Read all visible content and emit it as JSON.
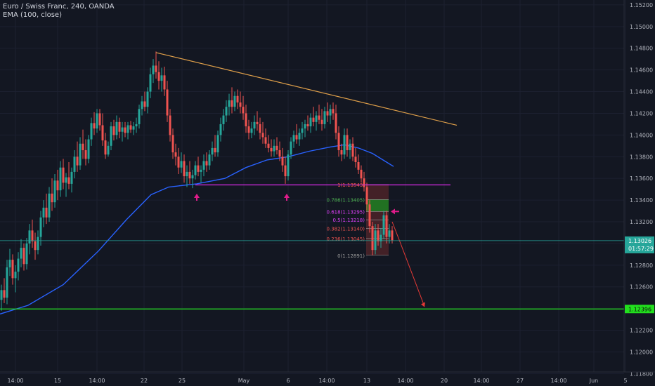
{
  "header": {
    "title": "Euro / Swiss Franc, 240, OANDA",
    "indicator": "EMA (100, close)"
  },
  "colors": {
    "background": "#131722",
    "grid": "#1c2030",
    "up": "#26a69a",
    "down": "#ef5350",
    "ema": "#2962ff",
    "trendline": "#e0a04a",
    "support": "#c729d6",
    "target": "#22e01e",
    "price_line": "#26a69a",
    "fib_box": "#6b2a2c",
    "fib_green": "#1e7a22",
    "arrow": "#e01b8a",
    "projection": "#e53935"
  },
  "chart_data": {
    "type": "candlestick",
    "symbol": "Euro / Swiss Franc",
    "timeframe": "240",
    "source": "OANDA",
    "y_axis": {
      "range": [
        1.1178,
        1.1528
      ],
      "ticks": [
        "1.15200",
        "1.15000",
        "1.14800",
        "1.14600",
        "1.14400",
        "1.14200",
        "1.14000",
        "1.13800",
        "1.13600",
        "1.13400",
        "1.13200",
        "1.13000",
        "1.12800",
        "1.12600",
        "1.12400",
        "1.12200",
        "1.12000",
        "1.11800"
      ]
    },
    "x_axis": {
      "ticks": [
        "14:00",
        "15",
        "14:00",
        "22",
        "25",
        "May",
        "6",
        "14:00",
        "13",
        "14:00",
        "20",
        "14:00",
        "27",
        "14:00",
        "Jun",
        "5"
      ]
    },
    "last_price": {
      "label": "1.13026",
      "value": 1.13026,
      "countdown": "01:57:29"
    },
    "target_level": {
      "label": "1.12396",
      "value": 1.12396
    },
    "ema_period": 100,
    "support_level": 1.1354,
    "trendline": [
      {
        "x": 222,
        "price": 1.1476
      },
      {
        "x": 650,
        "price": 1.1409
      }
    ],
    "fibonacci": [
      {
        "label": "1(1.13543)",
        "level": 1,
        "price": 1.13543
      },
      {
        "label": "0.786(1.13405)",
        "level": 0.786,
        "price": 1.13405
      },
      {
        "label": "0.618(1.13295)",
        "level": 0.618,
        "price": 1.13295
      },
      {
        "label": "0.5(1.13218)",
        "level": 0.5,
        "price": 1.13218
      },
      {
        "label": "0.382(1.13140)",
        "level": 0.382,
        "price": 1.1314
      },
      {
        "label": "0.236(1.13045)",
        "level": 0.236,
        "price": 1.13045
      },
      {
        "label": "0(1.12891)",
        "level": 0,
        "price": 1.12891
      }
    ],
    "ema": [
      [
        0,
        1.1235
      ],
      [
        40,
        1.1243
      ],
      [
        90,
        1.1262
      ],
      [
        140,
        1.1293
      ],
      [
        180,
        1.1322
      ],
      [
        215,
        1.1345
      ],
      [
        240,
        1.1352
      ],
      [
        280,
        1.1355
      ],
      [
        320,
        1.136
      ],
      [
        350,
        1.137
      ],
      [
        380,
        1.1377
      ],
      [
        410,
        1.138
      ],
      [
        440,
        1.1385
      ],
      [
        470,
        1.1389
      ],
      [
        490,
        1.1391
      ],
      [
        510,
        1.1388
      ],
      [
        530,
        1.1383
      ],
      [
        550,
        1.1375
      ],
      [
        560,
        1.1371
      ]
    ],
    "candles": [
      [
        2,
        1.1248,
        1.1262,
        1.1238,
        1.1257
      ],
      [
        6,
        1.1257,
        1.1268,
        1.1245,
        1.125
      ],
      [
        10,
        1.125,
        1.1285,
        1.1244,
        1.1278
      ],
      [
        14,
        1.1278,
        1.1295,
        1.127,
        1.1285
      ],
      [
        18,
        1.1285,
        1.129,
        1.1262,
        1.1268
      ],
      [
        22,
        1.1268,
        1.128,
        1.1255,
        1.1274
      ],
      [
        26,
        1.1274,
        1.1292,
        1.1266,
        1.1286
      ],
      [
        30,
        1.1286,
        1.1304,
        1.1278,
        1.1296
      ],
      [
        34,
        1.1296,
        1.13,
        1.1275,
        1.1281
      ],
      [
        38,
        1.1281,
        1.1305,
        1.1276,
        1.13
      ],
      [
        42,
        1.13,
        1.1318,
        1.129,
        1.1312
      ],
      [
        46,
        1.1312,
        1.1322,
        1.1296,
        1.1302
      ],
      [
        50,
        1.1302,
        1.131,
        1.1285,
        1.1294
      ],
      [
        54,
        1.1294,
        1.1312,
        1.129,
        1.1306
      ],
      [
        58,
        1.1306,
        1.133,
        1.1298,
        1.1324
      ],
      [
        62,
        1.1324,
        1.134,
        1.1315,
        1.1333
      ],
      [
        66,
        1.1333,
        1.1346,
        1.1318,
        1.1324
      ],
      [
        70,
        1.1324,
        1.1352,
        1.132,
        1.1346
      ],
      [
        74,
        1.1346,
        1.136,
        1.133,
        1.1338
      ],
      [
        78,
        1.1338,
        1.1364,
        1.1333,
        1.1358
      ],
      [
        82,
        1.1358,
        1.1368,
        1.134,
        1.1349
      ],
      [
        86,
        1.1349,
        1.1376,
        1.1343,
        1.137
      ],
      [
        90,
        1.137,
        1.1378,
        1.135,
        1.1356
      ],
      [
        94,
        1.1356,
        1.1365,
        1.1343,
        1.1361
      ],
      [
        98,
        1.1361,
        1.1375,
        1.135,
        1.1355
      ],
      [
        102,
        1.1355,
        1.137,
        1.1347,
        1.1366
      ],
      [
        106,
        1.1366,
        1.1386,
        1.136,
        1.138
      ],
      [
        110,
        1.138,
        1.1394,
        1.1366,
        1.1372
      ],
      [
        114,
        1.1372,
        1.1398,
        1.1368,
        1.1392
      ],
      [
        118,
        1.1392,
        1.1405,
        1.1378,
        1.1386
      ],
      [
        122,
        1.1386,
        1.1396,
        1.1372,
        1.1378
      ],
      [
        126,
        1.1378,
        1.14,
        1.1374,
        1.1396
      ],
      [
        130,
        1.1396,
        1.1416,
        1.139,
        1.1411
      ],
      [
        134,
        1.1411,
        1.1421,
        1.14,
        1.1406
      ],
      [
        138,
        1.1406,
        1.1424,
        1.1402,
        1.142
      ],
      [
        142,
        1.142,
        1.1424,
        1.1404,
        1.1409
      ],
      [
        146,
        1.1409,
        1.142,
        1.139,
        1.1395
      ],
      [
        150,
        1.1395,
        1.1402,
        1.1378,
        1.1382
      ],
      [
        154,
        1.1382,
        1.1394,
        1.138,
        1.139
      ],
      [
        158,
        1.139,
        1.1412,
        1.1386,
        1.1408
      ],
      [
        162,
        1.1408,
        1.1414,
        1.1395,
        1.14
      ],
      [
        166,
        1.14,
        1.1418,
        1.1396,
        1.1412
      ],
      [
        170,
        1.1412,
        1.1416,
        1.1397,
        1.1403
      ],
      [
        174,
        1.1403,
        1.1412,
        1.1394,
        1.1407
      ],
      [
        178,
        1.1407,
        1.1412,
        1.1398,
        1.1402
      ],
      [
        182,
        1.1402,
        1.1412,
        1.1396,
        1.1409
      ],
      [
        186,
        1.1409,
        1.1413,
        1.1402,
        1.1405
      ],
      [
        190,
        1.1405,
        1.1412,
        1.14,
        1.1408
      ],
      [
        194,
        1.1408,
        1.1416,
        1.1402,
        1.141
      ],
      [
        198,
        1.141,
        1.1428,
        1.1406,
        1.1424
      ],
      [
        202,
        1.1424,
        1.1436,
        1.1418,
        1.1431
      ],
      [
        206,
        1.1431,
        1.144,
        1.1422,
        1.1426
      ],
      [
        210,
        1.1426,
        1.1444,
        1.142,
        1.144
      ],
      [
        214,
        1.144,
        1.1462,
        1.1434,
        1.1456
      ],
      [
        218,
        1.1456,
        1.147,
        1.1448,
        1.1464
      ],
      [
        222,
        1.1464,
        1.1477,
        1.1452,
        1.1458
      ],
      [
        226,
        1.1458,
        1.1468,
        1.1442,
        1.145
      ],
      [
        230,
        1.145,
        1.1462,
        1.144,
        1.1455
      ],
      [
        234,
        1.1455,
        1.1463,
        1.1436,
        1.1442
      ],
      [
        238,
        1.1442,
        1.145,
        1.1412,
        1.1418
      ],
      [
        242,
        1.1418,
        1.1424,
        1.1394,
        1.14
      ],
      [
        246,
        1.14,
        1.1406,
        1.1378,
        1.1384
      ],
      [
        250,
        1.1384,
        1.1392,
        1.1372,
        1.138
      ],
      [
        254,
        1.138,
        1.1388,
        1.1364,
        1.137
      ],
      [
        258,
        1.137,
        1.1384,
        1.1365,
        1.1376
      ],
      [
        262,
        1.1376,
        1.1382,
        1.1356,
        1.1362
      ],
      [
        266,
        1.1362,
        1.1372,
        1.1352,
        1.1366
      ],
      [
        270,
        1.1366,
        1.1376,
        1.1355,
        1.136
      ],
      [
        274,
        1.136,
        1.1368,
        1.1351,
        1.1363
      ],
      [
        278,
        1.1363,
        1.1376,
        1.1359,
        1.1372
      ],
      [
        282,
        1.1372,
        1.138,
        1.1362,
        1.1366
      ],
      [
        286,
        1.1366,
        1.1372,
        1.1356,
        1.1368
      ],
      [
        290,
        1.1368,
        1.1382,
        1.1362,
        1.1376
      ],
      [
        294,
        1.1376,
        1.1384,
        1.1366,
        1.1372
      ],
      [
        298,
        1.1372,
        1.1386,
        1.1368,
        1.1382
      ],
      [
        302,
        1.1382,
        1.1394,
        1.1376,
        1.1388
      ],
      [
        306,
        1.1388,
        1.14,
        1.138,
        1.1384
      ],
      [
        310,
        1.1384,
        1.1404,
        1.138,
        1.14
      ],
      [
        314,
        1.14,
        1.1416,
        1.1394,
        1.141
      ],
      [
        318,
        1.141,
        1.1424,
        1.1404,
        1.1418
      ],
      [
        322,
        1.1418,
        1.1432,
        1.1412,
        1.1426
      ],
      [
        326,
        1.1426,
        1.1438,
        1.1418,
        1.1432
      ],
      [
        330,
        1.1432,
        1.1444,
        1.142,
        1.1426
      ],
      [
        334,
        1.1426,
        1.144,
        1.1422,
        1.1436
      ],
      [
        338,
        1.1436,
        1.1442,
        1.1424,
        1.143
      ],
      [
        342,
        1.143,
        1.144,
        1.142,
        1.1426
      ],
      [
        346,
        1.1426,
        1.1436,
        1.1414,
        1.142
      ],
      [
        350,
        1.142,
        1.1428,
        1.1402,
        1.1408
      ],
      [
        354,
        1.1408,
        1.1414,
        1.1396,
        1.1402
      ],
      [
        358,
        1.1402,
        1.1412,
        1.1397,
        1.1406
      ],
      [
        362,
        1.1406,
        1.1418,
        1.14,
        1.1412
      ],
      [
        366,
        1.1412,
        1.1422,
        1.1404,
        1.141
      ],
      [
        370,
        1.141,
        1.1416,
        1.1396,
        1.1402
      ],
      [
        374,
        1.1402,
        1.1412,
        1.1392,
        1.1398
      ],
      [
        378,
        1.1398,
        1.1406,
        1.1388,
        1.1392
      ],
      [
        382,
        1.1392,
        1.14,
        1.1384,
        1.1388
      ],
      [
        386,
        1.1388,
        1.1396,
        1.138,
        1.1385
      ],
      [
        390,
        1.1385,
        1.1396,
        1.138,
        1.139
      ],
      [
        394,
        1.139,
        1.1398,
        1.1382,
        1.1386
      ],
      [
        398,
        1.1386,
        1.1394,
        1.1376,
        1.138
      ],
      [
        402,
        1.138,
        1.1388,
        1.1366,
        1.1372
      ],
      [
        406,
        1.1372,
        1.138,
        1.1355,
        1.1362
      ],
      [
        410,
        1.1362,
        1.1386,
        1.1358,
        1.1382
      ],
      [
        414,
        1.1382,
        1.1398,
        1.1378,
        1.1394
      ],
      [
        418,
        1.1394,
        1.1404,
        1.1388,
        1.14
      ],
      [
        422,
        1.14,
        1.141,
        1.1392,
        1.1396
      ],
      [
        426,
        1.1396,
        1.1406,
        1.139,
        1.1402
      ],
      [
        430,
        1.1402,
        1.1412,
        1.1396,
        1.1406
      ],
      [
        434,
        1.1406,
        1.1414,
        1.1398,
        1.141
      ],
      [
        438,
        1.141,
        1.1418,
        1.1404,
        1.1408
      ],
      [
        442,
        1.1408,
        1.142,
        1.1402,
        1.1416
      ],
      [
        446,
        1.1416,
        1.1426,
        1.1408,
        1.1412
      ],
      [
        450,
        1.1412,
        1.1422,
        1.1404,
        1.1418
      ],
      [
        454,
        1.1418,
        1.1428,
        1.141,
        1.1414
      ],
      [
        458,
        1.1414,
        1.1424,
        1.1404,
        1.141
      ],
      [
        462,
        1.141,
        1.1426,
        1.1406,
        1.1422
      ],
      [
        466,
        1.1422,
        1.143,
        1.1412,
        1.1418
      ],
      [
        470,
        1.1418,
        1.1428,
        1.141,
        1.1424
      ],
      [
        474,
        1.1424,
        1.143,
        1.1414,
        1.142
      ],
      [
        478,
        1.142,
        1.1428,
        1.1396,
        1.1402
      ],
      [
        482,
        1.1402,
        1.1408,
        1.138,
        1.1386
      ],
      [
        486,
        1.1386,
        1.1392,
        1.1376,
        1.1382
      ],
      [
        490,
        1.1382,
        1.1406,
        1.1378,
        1.14
      ],
      [
        494,
        1.14,
        1.1406,
        1.138,
        1.1386
      ],
      [
        498,
        1.1386,
        1.1396,
        1.1378,
        1.1392
      ],
      [
        502,
        1.1392,
        1.1398,
        1.1376,
        1.138
      ],
      [
        506,
        1.138,
        1.1388,
        1.137,
        1.1375
      ],
      [
        510,
        1.1375,
        1.1382,
        1.1364,
        1.1368
      ],
      [
        514,
        1.1368,
        1.1372,
        1.1356,
        1.136
      ],
      [
        518,
        1.136,
        1.1366,
        1.1348,
        1.1352
      ],
      [
        522,
        1.1352,
        1.1356,
        1.133,
        1.1336
      ],
      [
        526,
        1.1336,
        1.134,
        1.131,
        1.1316
      ],
      [
        530,
        1.1316,
        1.132,
        1.1289,
        1.1294
      ],
      [
        534,
        1.1294,
        1.1318,
        1.129,
        1.1312
      ],
      [
        538,
        1.1312,
        1.1318,
        1.1298,
        1.1302
      ],
      [
        542,
        1.1302,
        1.1314,
        1.1296,
        1.1308
      ],
      [
        546,
        1.1308,
        1.133,
        1.1304,
        1.1326
      ],
      [
        550,
        1.1326,
        1.133,
        1.13,
        1.1306
      ],
      [
        554,
        1.1306,
        1.1318,
        1.13,
        1.1312
      ],
      [
        558,
        1.1312,
        1.1316,
        1.13,
        1.1303
      ]
    ]
  }
}
